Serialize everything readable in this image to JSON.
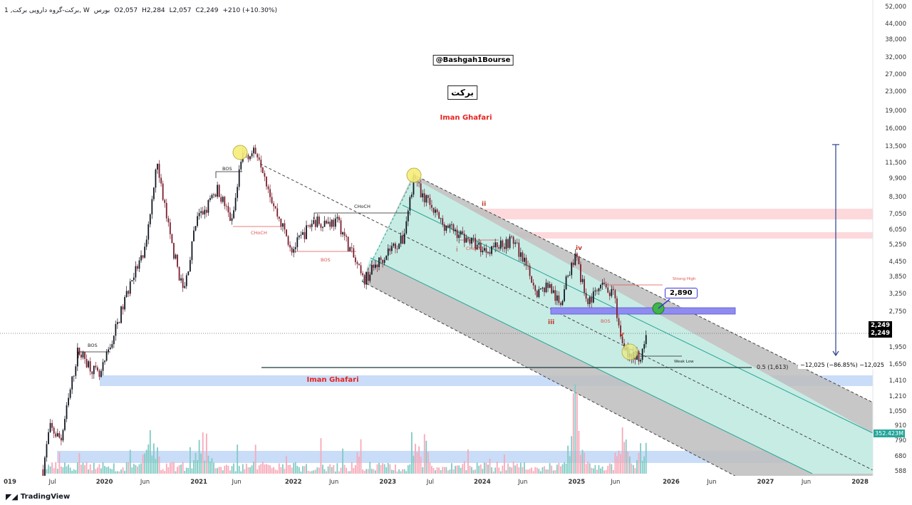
{
  "header": {
    "symbol": "1 ,برکت-گروه دارویی برکت, W",
    "exchange": "بورس",
    "open": "O2,057",
    "high": "H2,284",
    "low": "L2,057",
    "close": "C2,249",
    "change": "+210 (+10.30%)"
  },
  "watermarks": {
    "channel": "@Bashgah1Bourse",
    "ticker": "برکت",
    "author": "Iman Ghafari",
    "zone_label": "Iman Ghafari"
  },
  "annotations": {
    "bos1": "BOS",
    "bos2": "BOS",
    "bos3": "BOS",
    "bos4": "BOS",
    "choch1": "CHoCH",
    "choch2": "CHoCH",
    "choch3": "CHoCH",
    "wave_i": "i",
    "wave_ii": "ii",
    "wave_iii": "iii",
    "wave_iv": "iv",
    "wave_v": "v",
    "strong_high": "Strong High",
    "weak_low": "Weak Low",
    "fib": "0.5 (1,613)",
    "target": "2,890",
    "measure": "−12,025 (−86.85%) −12,025"
  },
  "colors": {
    "up": "#131722",
    "down": "#7b1f2e",
    "vol_up": "#80cbc4",
    "vol_down": "#f7a9b8",
    "channel": "#c4c4c4",
    "teal": "#c6ece4",
    "zone_pink": "#fdd9dc",
    "zone_blue": "#c9dcf8",
    "zone_purple": "#8f8cf0"
  },
  "price_axis": [
    "52,000",
    "44,000",
    "38,000",
    "32,000",
    "27,000",
    "23,000",
    "19,000",
    "16,000",
    "13,500",
    "11,500",
    "9,900",
    "8,300",
    "7,050",
    "6,050",
    "5,250",
    "4,450",
    "3,850",
    "3,250",
    "2,750",
    "1,950",
    "1,650",
    "1,410",
    "1,210",
    "1,050",
    "910",
    "790",
    "680",
    "588"
  ],
  "last_price": "2,249",
  "volume_tag": "352.423M",
  "time_axis": [
    {
      "label": "019",
      "year": 2019.0,
      "bold": true
    },
    {
      "label": "Jul",
      "year": 2019.45
    },
    {
      "label": "2020",
      "year": 2020.0,
      "bold": true
    },
    {
      "label": "Jun",
      "year": 2020.43
    },
    {
      "label": "2021",
      "year": 2021.0,
      "bold": true
    },
    {
      "label": "Jun",
      "year": 2021.4
    },
    {
      "label": "2022",
      "year": 2022.0,
      "bold": true
    },
    {
      "label": "Jun",
      "year": 2022.43
    },
    {
      "label": "2023",
      "year": 2023.0,
      "bold": true
    },
    {
      "label": "Jul",
      "year": 2023.45
    },
    {
      "label": "2024",
      "year": 2024.0,
      "bold": true
    },
    {
      "label": "Jun",
      "year": 2024.43
    },
    {
      "label": "2025",
      "year": 2025.0,
      "bold": true
    },
    {
      "label": "Jun",
      "year": 2025.41
    },
    {
      "label": "2026",
      "year": 2026.0,
      "bold": true
    },
    {
      "label": "Jun",
      "year": 2026.43
    },
    {
      "label": "2027",
      "year": 2027.0,
      "bold": true
    },
    {
      "label": "Jun",
      "year": 2027.43
    },
    {
      "label": "2028",
      "year": 2028.0,
      "bold": true
    }
  ],
  "brand": "TradingView",
  "chart_data": {
    "type": "candlestick",
    "scale": "log",
    "interval": "W",
    "ylim": [
      588,
      52000
    ],
    "xlim": [
      2019.0,
      2028.0
    ],
    "waypoints": [
      [
        2019.35,
        600
      ],
      [
        2019.42,
        900
      ],
      [
        2019.54,
        800
      ],
      [
        2019.72,
        1900
      ],
      [
        2019.95,
        1450
      ],
      [
        2020.1,
        2200
      ],
      [
        2020.29,
        3800
      ],
      [
        2020.44,
        5000
      ],
      [
        2020.55,
        12000
      ],
      [
        2020.7,
        5500
      ],
      [
        2020.84,
        3300
      ],
      [
        2020.97,
        6500
      ],
      [
        2021.12,
        8000
      ],
      [
        2021.2,
        9000
      ],
      [
        2021.35,
        6500
      ],
      [
        2021.46,
        12500
      ],
      [
        2021.63,
        12800
      ],
      [
        2021.8,
        7500
      ],
      [
        2021.99,
        5000
      ],
      [
        2022.21,
        6600
      ],
      [
        2022.48,
        6500
      ],
      [
        2022.74,
        3700
      ],
      [
        2023.01,
        5000
      ],
      [
        2023.16,
        5500
      ],
      [
        2023.27,
        9800
      ],
      [
        2023.57,
        6500
      ],
      [
        2024.02,
        5000
      ],
      [
        2024.33,
        5500
      ],
      [
        2024.59,
        3300
      ],
      [
        2024.7,
        3600
      ],
      [
        2024.82,
        2900
      ],
      [
        2024.93,
        4200
      ],
      [
        2024.99,
        4600
      ],
      [
        2025.12,
        3000
      ],
      [
        2025.27,
        3500
      ],
      [
        2025.4,
        3200
      ],
      [
        2025.46,
        2200
      ],
      [
        2025.57,
        1750
      ],
      [
        2025.68,
        1800
      ],
      [
        2025.74,
        2249
      ]
    ],
    "volume_spike_years": [
      2020.5,
      2021.05,
      2023.35,
      2024.97,
      2025.0,
      2025.5,
      2025.73
    ]
  }
}
